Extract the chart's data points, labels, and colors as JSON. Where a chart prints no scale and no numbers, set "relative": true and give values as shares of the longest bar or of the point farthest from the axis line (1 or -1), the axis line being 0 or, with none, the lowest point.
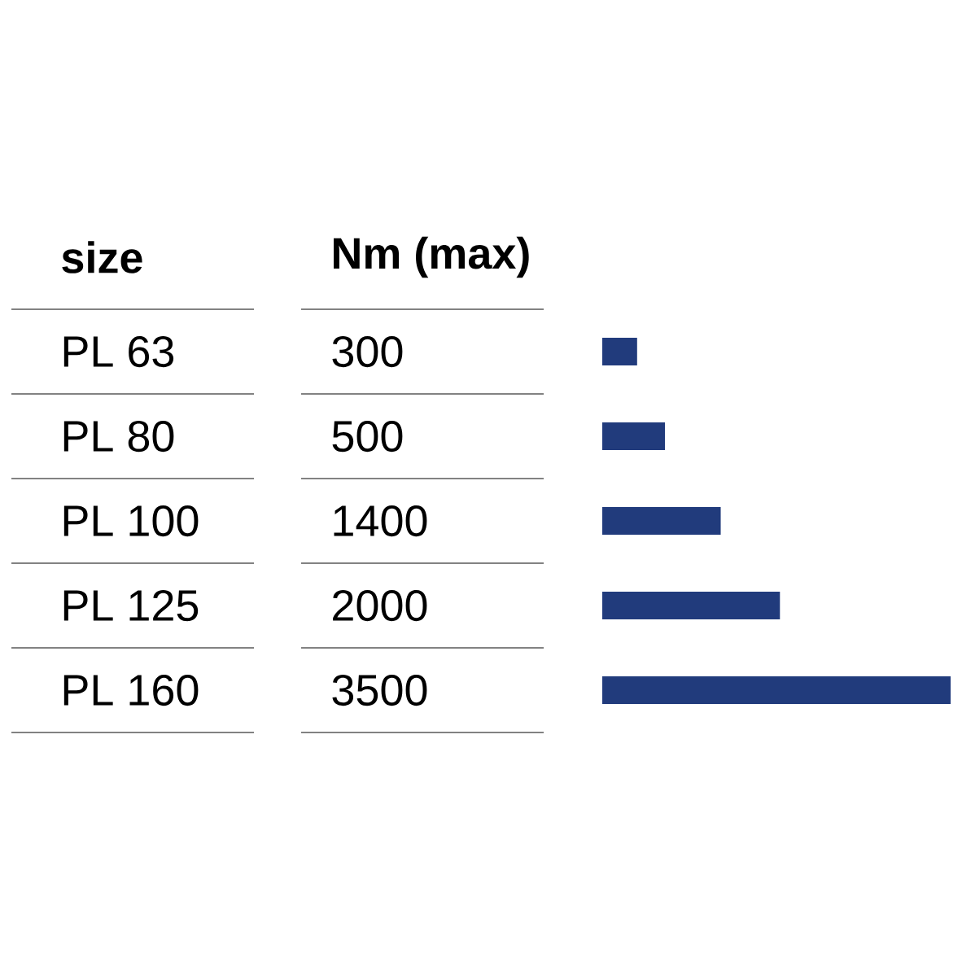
{
  "chart_data": [
    {
      "type": "other",
      "ylabel": "size",
      "xlabel": "Nm (max)",
      "categories": [
        "PL 63",
        "PL 80",
        "PL 100",
        "PL 125",
        "PL 160"
      ],
      "values": [
        300,
        500,
        1400,
        2000,
        3500
      ],
      "data_labels": true
    },
    {
      "type": "bar",
      "orientation": "horizontal",
      "relative": true,
      "categories": [
        null,
        null,
        null,
        null,
        null
      ],
      "values": [
        0.1,
        0.18,
        0.34,
        0.51,
        1
      ],
      "color": "#213b7c"
    }
  ]
}
